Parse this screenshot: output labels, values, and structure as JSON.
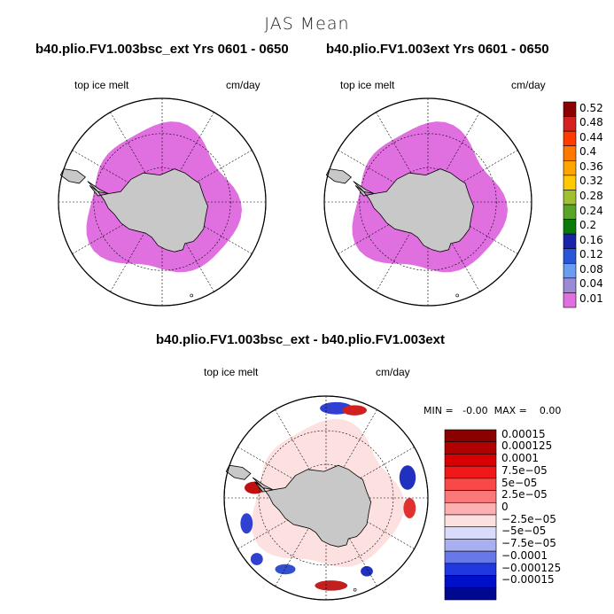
{
  "suptitle": "JAS Mean",
  "panels": {
    "left": {
      "title": "b40.plio.FV1.003bsc_ext  Yrs 0601 - 0650",
      "left_label": "top ice melt",
      "right_label": "cm/day"
    },
    "right": {
      "title": "b40.plio.FV1.003ext  Yrs 0601 - 0650",
      "left_label": "top ice melt",
      "right_label": "cm/day"
    },
    "diff": {
      "title": "b40.plio.FV1.003bsc_ext - b40.plio.FV1.003ext",
      "left_label": "top ice melt",
      "right_label": "cm/day",
      "minmax": "MIN =   -0.00  MAX =    0.00"
    }
  },
  "colorbar_top": {
    "levels": [
      "0.52",
      "0.48",
      "0.44",
      "0.4",
      "0.36",
      "0.32",
      "0.28",
      "0.24",
      "0.2",
      "0.16",
      "0.12",
      "0.08",
      "0.04",
      "0.01"
    ],
    "colors": [
      "#8b0000",
      "#d42020",
      "#ff3b00",
      "#ff7800",
      "#ffa500",
      "#ffc800",
      "#9fc030",
      "#5aa528",
      "#0a7a0a",
      "#1a24a8",
      "#2a55d8",
      "#6a9cf0",
      "#9a8ad8",
      "#e070e0"
    ]
  },
  "colorbar_diff": {
    "levels": [
      "0.00015",
      "0.000125",
      "0.0001",
      "7.5e−05",
      "5e−05",
      "2.5e−05",
      "0",
      "−2.5e−05",
      "−5e−05",
      "−7.5e−05",
      "−0.0001",
      "−0.000125",
      "−0.00015"
    ],
    "colors": [
      "#8b0000",
      "#b00000",
      "#d80000",
      "#f01818",
      "#f84848",
      "#fa7878",
      "#fcb0b0",
      "#fde0e0",
      "#d8dcfa",
      "#a8b0f0",
      "#6878e8",
      "#2038e0",
      "#0010c8",
      "#000890"
    ]
  },
  "colors": {
    "ocean": "#ffffff",
    "land": "#c8c8c8",
    "ice": "#e070e0",
    "diff_ice": "#fde0e0"
  }
}
